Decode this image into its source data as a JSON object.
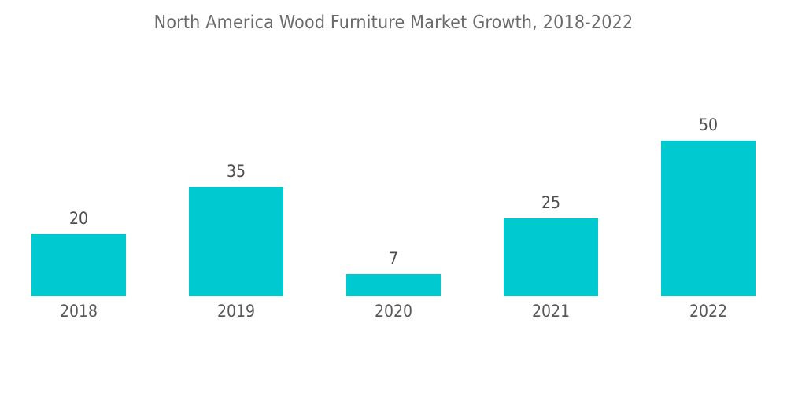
{
  "chart_data": {
    "type": "bar",
    "title": "North America Wood Furniture Market Growth, 2018-2022",
    "categories": [
      "2018",
      "2019",
      "2020",
      "2021",
      "2022"
    ],
    "values": [
      20,
      35,
      7,
      25,
      50
    ],
    "xlabel": "",
    "ylabel": "",
    "ylim": [
      0,
      50
    ],
    "grid": false,
    "legend": false,
    "axes_visible": false,
    "colors": {
      "bar": "#00C9CF",
      "title": "#6b6b6b",
      "value_label": "#4d4d4d",
      "tick_label": "#595959",
      "background": "#ffffff"
    }
  }
}
